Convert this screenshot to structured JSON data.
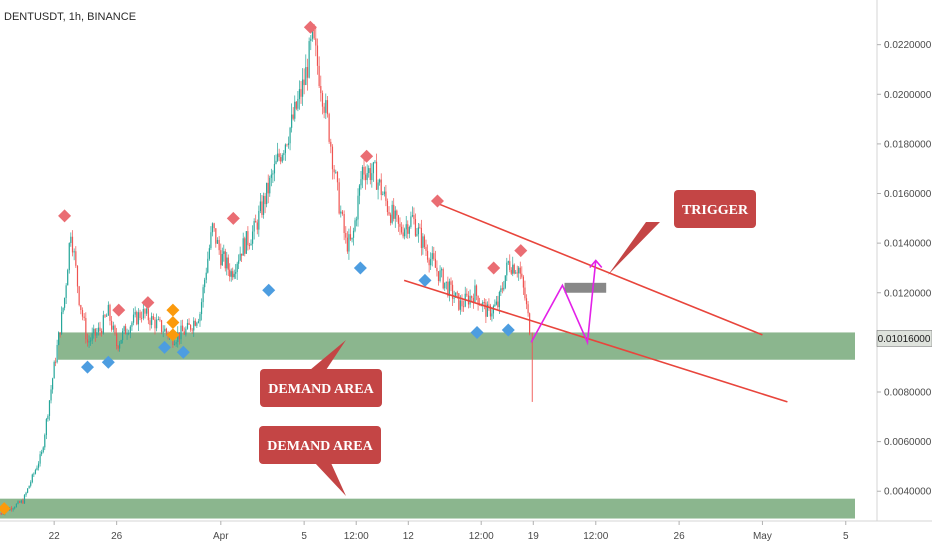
{
  "chart_data": {
    "type": "candlestick",
    "title": "DENTUSDT, 1h, BINANCE",
    "y_ticks": [
      "0.0220000",
      "0.0200000",
      "0.0180000",
      "0.0160000",
      "0.0140000",
      "0.0120000",
      "0.0080000",
      "0.0060000",
      "0.0040000"
    ],
    "y_tick_values": [
      0.022,
      0.02,
      0.018,
      0.016,
      0.014,
      0.012,
      0.008,
      0.006,
      0.004
    ],
    "ylim": [
      0.0028,
      0.0238
    ],
    "x_ticks": [
      "22",
      "26",
      "Apr",
      "5",
      "12:00",
      "12",
      "12:00",
      "19",
      "12:00",
      "26",
      "May",
      "5"
    ],
    "x_tick_values": [
      0.0,
      3.0,
      8.0,
      12.0,
      14.5,
      17.0,
      20.5,
      23.0,
      26.0,
      30.0,
      34.0,
      38.0
    ],
    "xlim": [
      -2.6,
      39.5
    ],
    "last_price": "0.01016000",
    "last_price_value": 0.01016,
    "price_path": [
      [
        -2.6,
        0.0031
      ],
      [
        -1.5,
        0.0036
      ],
      [
        -0.6,
        0.0055
      ],
      [
        0.0,
        0.009
      ],
      [
        0.5,
        0.0118
      ],
      [
        0.8,
        0.0146
      ],
      [
        1.2,
        0.0118
      ],
      [
        1.6,
        0.01
      ],
      [
        2.2,
        0.0105
      ],
      [
        2.6,
        0.0112
      ],
      [
        3.0,
        0.0099
      ],
      [
        3.5,
        0.0106
      ],
      [
        4.2,
        0.0112
      ],
      [
        5.0,
        0.0107
      ],
      [
        5.7,
        0.0102
      ],
      [
        6.4,
        0.0105
      ],
      [
        7.0,
        0.0112
      ],
      [
        7.3,
        0.013
      ],
      [
        7.6,
        0.0146
      ],
      [
        8.0,
        0.0135
      ],
      [
        8.5,
        0.0128
      ],
      [
        9.0,
        0.0138
      ],
      [
        9.6,
        0.0145
      ],
      [
        10.2,
        0.016
      ],
      [
        10.8,
        0.0175
      ],
      [
        11.4,
        0.0188
      ],
      [
        12.0,
        0.0205
      ],
      [
        12.4,
        0.0222
      ],
      [
        12.8,
        0.0205
      ],
      [
        13.2,
        0.0185
      ],
      [
        13.6,
        0.016
      ],
      [
        14.0,
        0.014
      ],
      [
        14.3,
        0.014
      ],
      [
        14.8,
        0.017
      ],
      [
        15.4,
        0.0168
      ],
      [
        16.0,
        0.0155
      ],
      [
        16.6,
        0.0145
      ],
      [
        17.2,
        0.015
      ],
      [
        17.7,
        0.014
      ],
      [
        18.3,
        0.013
      ],
      [
        18.9,
        0.0122
      ],
      [
        19.5,
        0.0115
      ],
      [
        20.2,
        0.012
      ],
      [
        20.8,
        0.0112
      ],
      [
        21.3,
        0.0115
      ],
      [
        21.8,
        0.0132
      ],
      [
        22.3,
        0.013
      ],
      [
        22.6,
        0.0118
      ],
      [
        22.9,
        0.0102
      ]
    ],
    "markers": [
      {
        "kind": "sell",
        "x": 0.5,
        "y": 0.0151
      },
      {
        "kind": "sell",
        "x": 3.1,
        "y": 0.0113
      },
      {
        "kind": "sell",
        "x": 4.5,
        "y": 0.0116
      },
      {
        "kind": "sell",
        "x": 8.6,
        "y": 0.015
      },
      {
        "kind": "sell",
        "x": 12.3,
        "y": 0.0227
      },
      {
        "kind": "sell",
        "x": 15.0,
        "y": 0.0175
      },
      {
        "kind": "sell",
        "x": 18.4,
        "y": 0.0157
      },
      {
        "kind": "sell",
        "x": 21.1,
        "y": 0.013
      },
      {
        "kind": "sell",
        "x": 22.4,
        "y": 0.0137
      },
      {
        "kind": "buy",
        "x": 1.6,
        "y": 0.009
      },
      {
        "kind": "buy",
        "x": 2.6,
        "y": 0.0092
      },
      {
        "kind": "buy",
        "x": 5.3,
        "y": 0.0098
      },
      {
        "kind": "buy",
        "x": 6.2,
        "y": 0.0096
      },
      {
        "kind": "buy",
        "x": 10.3,
        "y": 0.0121
      },
      {
        "kind": "buy",
        "x": 14.7,
        "y": 0.013
      },
      {
        "kind": "buy",
        "x": 17.8,
        "y": 0.0125
      },
      {
        "kind": "buy",
        "x": 20.3,
        "y": 0.0104
      },
      {
        "kind": "buy",
        "x": 21.8,
        "y": 0.0105
      },
      {
        "kind": "alert",
        "x": -2.4,
        "y": 0.0033
      },
      {
        "kind": "alert",
        "x": 5.7,
        "y": 0.0113
      },
      {
        "kind": "alert",
        "x": 5.7,
        "y": 0.0108
      },
      {
        "kind": "alert",
        "x": 5.7,
        "y": 0.0103
      }
    ],
    "demand_zones": [
      {
        "label": "DEMAND AREA",
        "low": 0.0093,
        "high": 0.0104
      },
      {
        "label": "DEMAND AREA",
        "low": 0.0029,
        "high": 0.0037
      }
    ],
    "channel_lines": [
      {
        "x1": 18.4,
        "y1": 0.0156,
        "x2": 34.0,
        "y2": 0.0103
      },
      {
        "x1": 16.8,
        "y1": 0.0125,
        "x2": 35.2,
        "y2": 0.0076
      }
    ],
    "projection_path": [
      [
        22.9,
        0.01
      ],
      [
        24.4,
        0.0123
      ],
      [
        25.6,
        0.01
      ],
      [
        26.0,
        0.0133
      ]
    ],
    "trigger_box": {
      "x1": 24.5,
      "x2": 26.5,
      "low": 0.012,
      "high": 0.0124
    },
    "annotations": [
      {
        "text": "TRIGGER"
      },
      {
        "text": "DEMAND AREA"
      },
      {
        "text": "DEMAND AREA"
      }
    ],
    "colors": {
      "demand": "#6aa26e",
      "channel": "#e8453c",
      "projection": "#e321e8",
      "callout": "#c44545",
      "sell_marker": "#ea6d73",
      "buy_marker": "#4d9de0",
      "alert_marker": "#fb9a0c",
      "up_candle": "#26a69a",
      "down_candle": "#ef5350",
      "trigger_box": "#888888"
    }
  }
}
